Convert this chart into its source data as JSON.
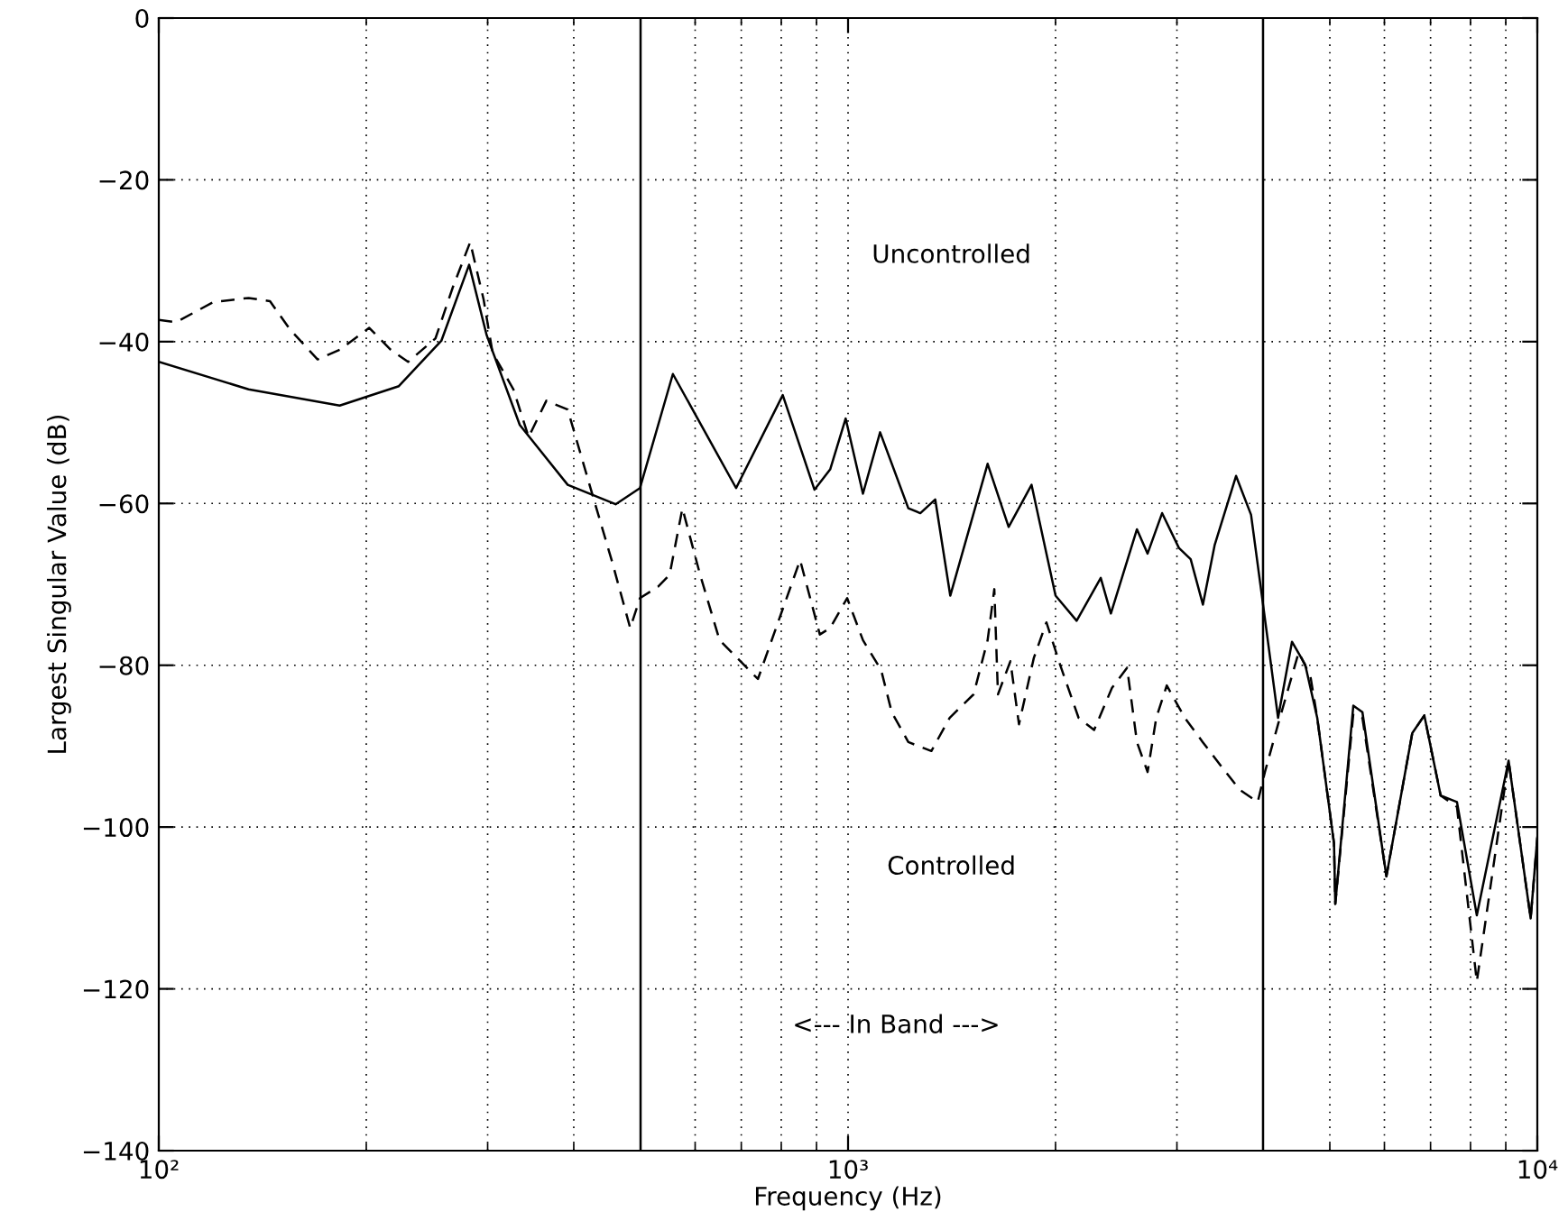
{
  "chart_data": {
    "type": "line",
    "xlabel": "Frequency (Hz)",
    "ylabel": "Largest Singular Value (dB)",
    "log": "x",
    "grid": true,
    "marker": "none",
    "xlim": [
      100,
      10000
    ],
    "xticks": [
      {
        "value": 100,
        "label": "10²"
      },
      {
        "value": 1000,
        "label": "10³"
      },
      {
        "value": 10000,
        "label": "10⁴"
      }
    ],
    "ylim": [
      -140,
      0
    ],
    "yticks": [
      {
        "value": -140,
        "label": "−140"
      },
      {
        "value": -120,
        "label": "−120"
      },
      {
        "value": -100,
        "label": "−100"
      },
      {
        "value": -80,
        "label": "−80"
      },
      {
        "value": -60,
        "label": "−60"
      },
      {
        "value": -40,
        "label": "−40"
      },
      {
        "value": -20,
        "label": "−20"
      },
      0
    ],
    "series": [
      {
        "color": "#000000",
        "line_style": "solid",
        "x": [
          100,
          135,
          183,
          223,
          257,
          282,
          299,
          334,
          392,
          460,
          499,
          557,
          688,
          804,
          894,
          942,
          992,
          1051,
          1113,
          1223,
          1273,
          1338,
          1407,
          1594,
          1710,
          1846,
          2000,
          2146,
          2326,
          2406,
          2625,
          2720,
          2855,
          3020,
          3141,
          3272,
          3404,
          3655,
          3843,
          3963,
          4206,
          4406,
          4604,
          4794,
          5070,
          5092,
          5408,
          5575,
          6040,
          6585,
          6855,
          7240,
          7645,
          8170,
          9085,
          9780,
          10000
        ],
        "values": [
          -42.5,
          -45.9,
          -47.9,
          -45.5,
          -39.9,
          -30.5,
          -39.2,
          -50.3,
          -57.7,
          -60.1,
          -58.1,
          -44.0,
          -58.1,
          -46.6,
          -58.3,
          -55.8,
          -49.5,
          -58.8,
          -51.2,
          -60.6,
          -61.2,
          -59.5,
          -71.4,
          -55.1,
          -62.9,
          -57.7,
          -71.4,
          -74.5,
          -69.2,
          -73.6,
          -63.2,
          -66.2,
          -61.2,
          -65.5,
          -66.9,
          -72.5,
          -65.1,
          -56.6,
          -61.4,
          -69.9,
          -86.5,
          -77.1,
          -79.9,
          -86.5,
          -102,
          -109.5,
          -85.0,
          -85.8,
          -106.1,
          -88.4,
          -86.2,
          -96.1,
          -96.9,
          -110.9,
          -91.8,
          -111.3,
          -101.3
        ]
      },
      {
        "color": "#000000",
        "line_style": "dashed",
        "x": [
          100,
          106,
          120,
          135,
          145,
          155,
          170,
          183,
          202,
          217,
          230,
          252,
          267,
          283,
          296,
          305,
          327,
          344,
          365,
          392,
          424,
          455,
          483,
          499,
          530,
          551,
          575,
          610,
          651,
          740,
          852,
          910,
          942,
          997,
          1051,
          1117,
          1157,
          1223,
          1321,
          1404,
          1521,
          1594,
          1630,
          1650,
          1720,
          1770,
          1860,
          1940,
          2030,
          2160,
          2275,
          2415,
          2540,
          2625,
          2720,
          2800,
          2900,
          3080,
          3270,
          3480,
          3700,
          3930,
          4025,
          4206,
          4506,
          4687,
          4794,
          5070,
          5092,
          5408,
          5575,
          6040,
          6585,
          6855,
          7240,
          7645,
          8170,
          9085,
          9780,
          10000
        ],
        "values": [
          -37.3,
          -37.6,
          -35.1,
          -34.6,
          -35.0,
          -38.5,
          -42.2,
          -41.0,
          -38.3,
          -41.0,
          -42.5,
          -39.6,
          -33.3,
          -27.7,
          -34.8,
          -41.4,
          -45.9,
          -51.8,
          -47.3,
          -48.4,
          -58.4,
          -67.3,
          -75.4,
          -71.7,
          -70.3,
          -68.8,
          -60.6,
          -68.8,
          -76.9,
          -81.7,
          -67,
          -76.2,
          -75.4,
          -71.7,
          -76.9,
          -80.6,
          -85.8,
          -89.5,
          -90.6,
          -86.5,
          -83.6,
          -76.9,
          -70.6,
          -83.6,
          -79.5,
          -87.3,
          -79.1,
          -74.7,
          -79.9,
          -86.5,
          -88.0,
          -82.8,
          -80.3,
          -89.5,
          -93.2,
          -86.5,
          -82.5,
          -86.5,
          -89.5,
          -92.5,
          -95.4,
          -96.9,
          -93.2,
          -87.3,
          -78.4,
          -81.4,
          -86.5,
          -102,
          -109.5,
          -86.0,
          -86.5,
          -106.1,
          -88.4,
          -86.2,
          -96.1,
          -97.5,
          -119.1,
          -91.8,
          -111.3,
          -101.3
        ]
      }
    ],
    "ref_lines": [
      {
        "axis": "x",
        "value": 500,
        "color": "#000000",
        "line_style": "solid"
      },
      {
        "axis": "x",
        "value": 4000,
        "color": "#000000",
        "line_style": "solid"
      }
    ],
    "annotations": [
      "Uncontrolled",
      "Controlled",
      "<--- In Band --->"
    ]
  }
}
